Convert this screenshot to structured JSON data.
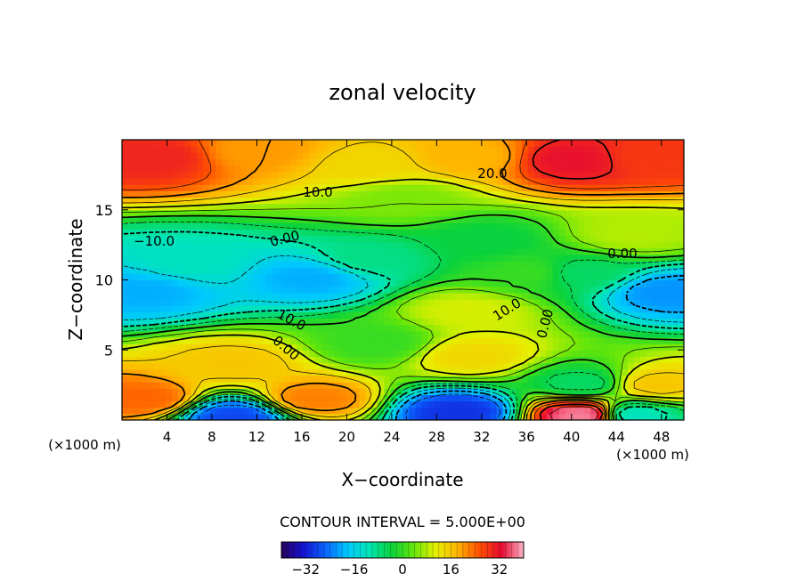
{
  "chart_data": {
    "type": "heatmap",
    "title": "zonal velocity",
    "xlabel": "X−coordinate",
    "ylabel": "Z−coordinate",
    "x_unit_label": "(×1000 m)",
    "z_unit_label": "(×1000 m)",
    "xlim": [
      0,
      50
    ],
    "ylim": [
      0,
      20
    ],
    "x_ticks": [
      4,
      8,
      12,
      16,
      20,
      24,
      28,
      32,
      36,
      40,
      44,
      48
    ],
    "y_ticks": [
      5,
      10,
      15
    ],
    "contour_interval_label": "CONTOUR INTERVAL = 5.000E+00",
    "contour_labels": [
      "20.0",
      "10.0",
      "0.00",
      "−10.0",
      "10.0",
      "0.00",
      "10.0",
      "0.00",
      "0.00"
    ],
    "colorbar": {
      "range": [
        -40,
        40
      ],
      "ticks": [
        -32,
        -16,
        0,
        16,
        32
      ]
    },
    "field_features": [
      {
        "x": 3,
        "z": 18.8,
        "value": 30
      },
      {
        "x": 12,
        "z": 19.2,
        "value": 20
      },
      {
        "x": 22,
        "z": 18.2,
        "value": 14
      },
      {
        "x": 31,
        "z": 18.8,
        "value": 18
      },
      {
        "x": 40,
        "z": 18.6,
        "value": 32
      },
      {
        "x": 47,
        "z": 18.8,
        "value": 28
      },
      {
        "x": 25,
        "z": 15.8,
        "value": 5
      },
      {
        "x": 2,
        "z": 9.3,
        "value": -20
      },
      {
        "x": 6,
        "z": 11.2,
        "value": -12
      },
      {
        "x": 17,
        "z": 10.2,
        "value": -20
      },
      {
        "x": 22,
        "z": 11.5,
        "value": -8
      },
      {
        "x": 32,
        "z": 12.8,
        "value": -4
      },
      {
        "x": 41,
        "z": 10.5,
        "value": -6
      },
      {
        "x": 48.5,
        "z": 9.2,
        "value": -22
      },
      {
        "x": 45.5,
        "z": 13.2,
        "value": 8
      },
      {
        "x": 31,
        "z": 7.8,
        "value": 10
      },
      {
        "x": 31,
        "z": 4.6,
        "value": 14
      },
      {
        "x": 10,
        "z": 4.0,
        "value": 16
      },
      {
        "x": 2,
        "z": 1.5,
        "value": 24
      },
      {
        "x": 17,
        "z": 1.5,
        "value": 22
      },
      {
        "x": 10,
        "z": 0.3,
        "value": -28
      },
      {
        "x": 30,
        "z": 0.6,
        "value": -30
      },
      {
        "x": 41,
        "z": 0.4,
        "value": 38
      },
      {
        "x": 45.5,
        "z": 0.4,
        "value": -12
      },
      {
        "x": 47.5,
        "z": 2.5,
        "value": 16
      },
      {
        "x": 41,
        "z": 2.6,
        "value": -6
      },
      {
        "x": 23,
        "z": 5.5,
        "value": 0
      },
      {
        "x": 36,
        "z": 10.5,
        "value": 0
      }
    ]
  },
  "colors": {
    "background": "#ffffff",
    "colormap": [
      "#28005a",
      "#1414d2",
      "#0a64ff",
      "#00c8ff",
      "#00e6b4",
      "#0ad23c",
      "#64e60a",
      "#e6f000",
      "#ffb400",
      "#ff5000",
      "#e60a32",
      "#ffb4c8"
    ]
  }
}
